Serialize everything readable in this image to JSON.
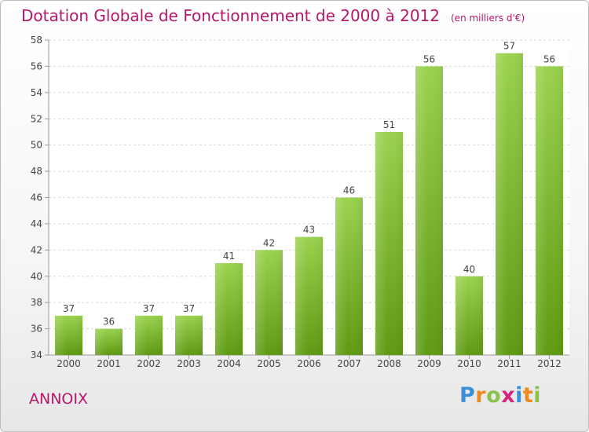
{
  "title": "Dotation Globale de Fonctionnement de 2000 à 2012",
  "subtitle": "(en milliers d'€)",
  "commune": "ANNOIX",
  "logo": {
    "letters": [
      "P",
      "r",
      "o",
      "x",
      "i",
      "t",
      "i"
    ],
    "colors": [
      "#3b8fd6",
      "#f08a1c",
      "#8bc34a",
      "#d6247d",
      "#3b8fd6",
      "#f08a1c",
      "#8bc34a"
    ]
  },
  "colors": {
    "title": "#b5176b",
    "bar_top": "#9ad24e",
    "bar_bottom": "#5e9a12",
    "axis": "#9a9a9a",
    "grid": "#d8d8d8",
    "label": "#444444"
  },
  "chart_data": {
    "type": "bar",
    "categories": [
      "2000",
      "2001",
      "2002",
      "2003",
      "2004",
      "2005",
      "2006",
      "2007",
      "2008",
      "2009",
      "2010",
      "2011",
      "2012"
    ],
    "values": [
      37,
      36,
      37,
      37,
      41,
      42,
      43,
      46,
      51,
      56,
      40,
      57,
      56
    ],
    "ylim": [
      34,
      58
    ],
    "yticks": [
      34,
      36,
      38,
      40,
      42,
      44,
      46,
      48,
      50,
      52,
      54,
      56,
      58
    ],
    "grid": true,
    "data_labels": true
  }
}
